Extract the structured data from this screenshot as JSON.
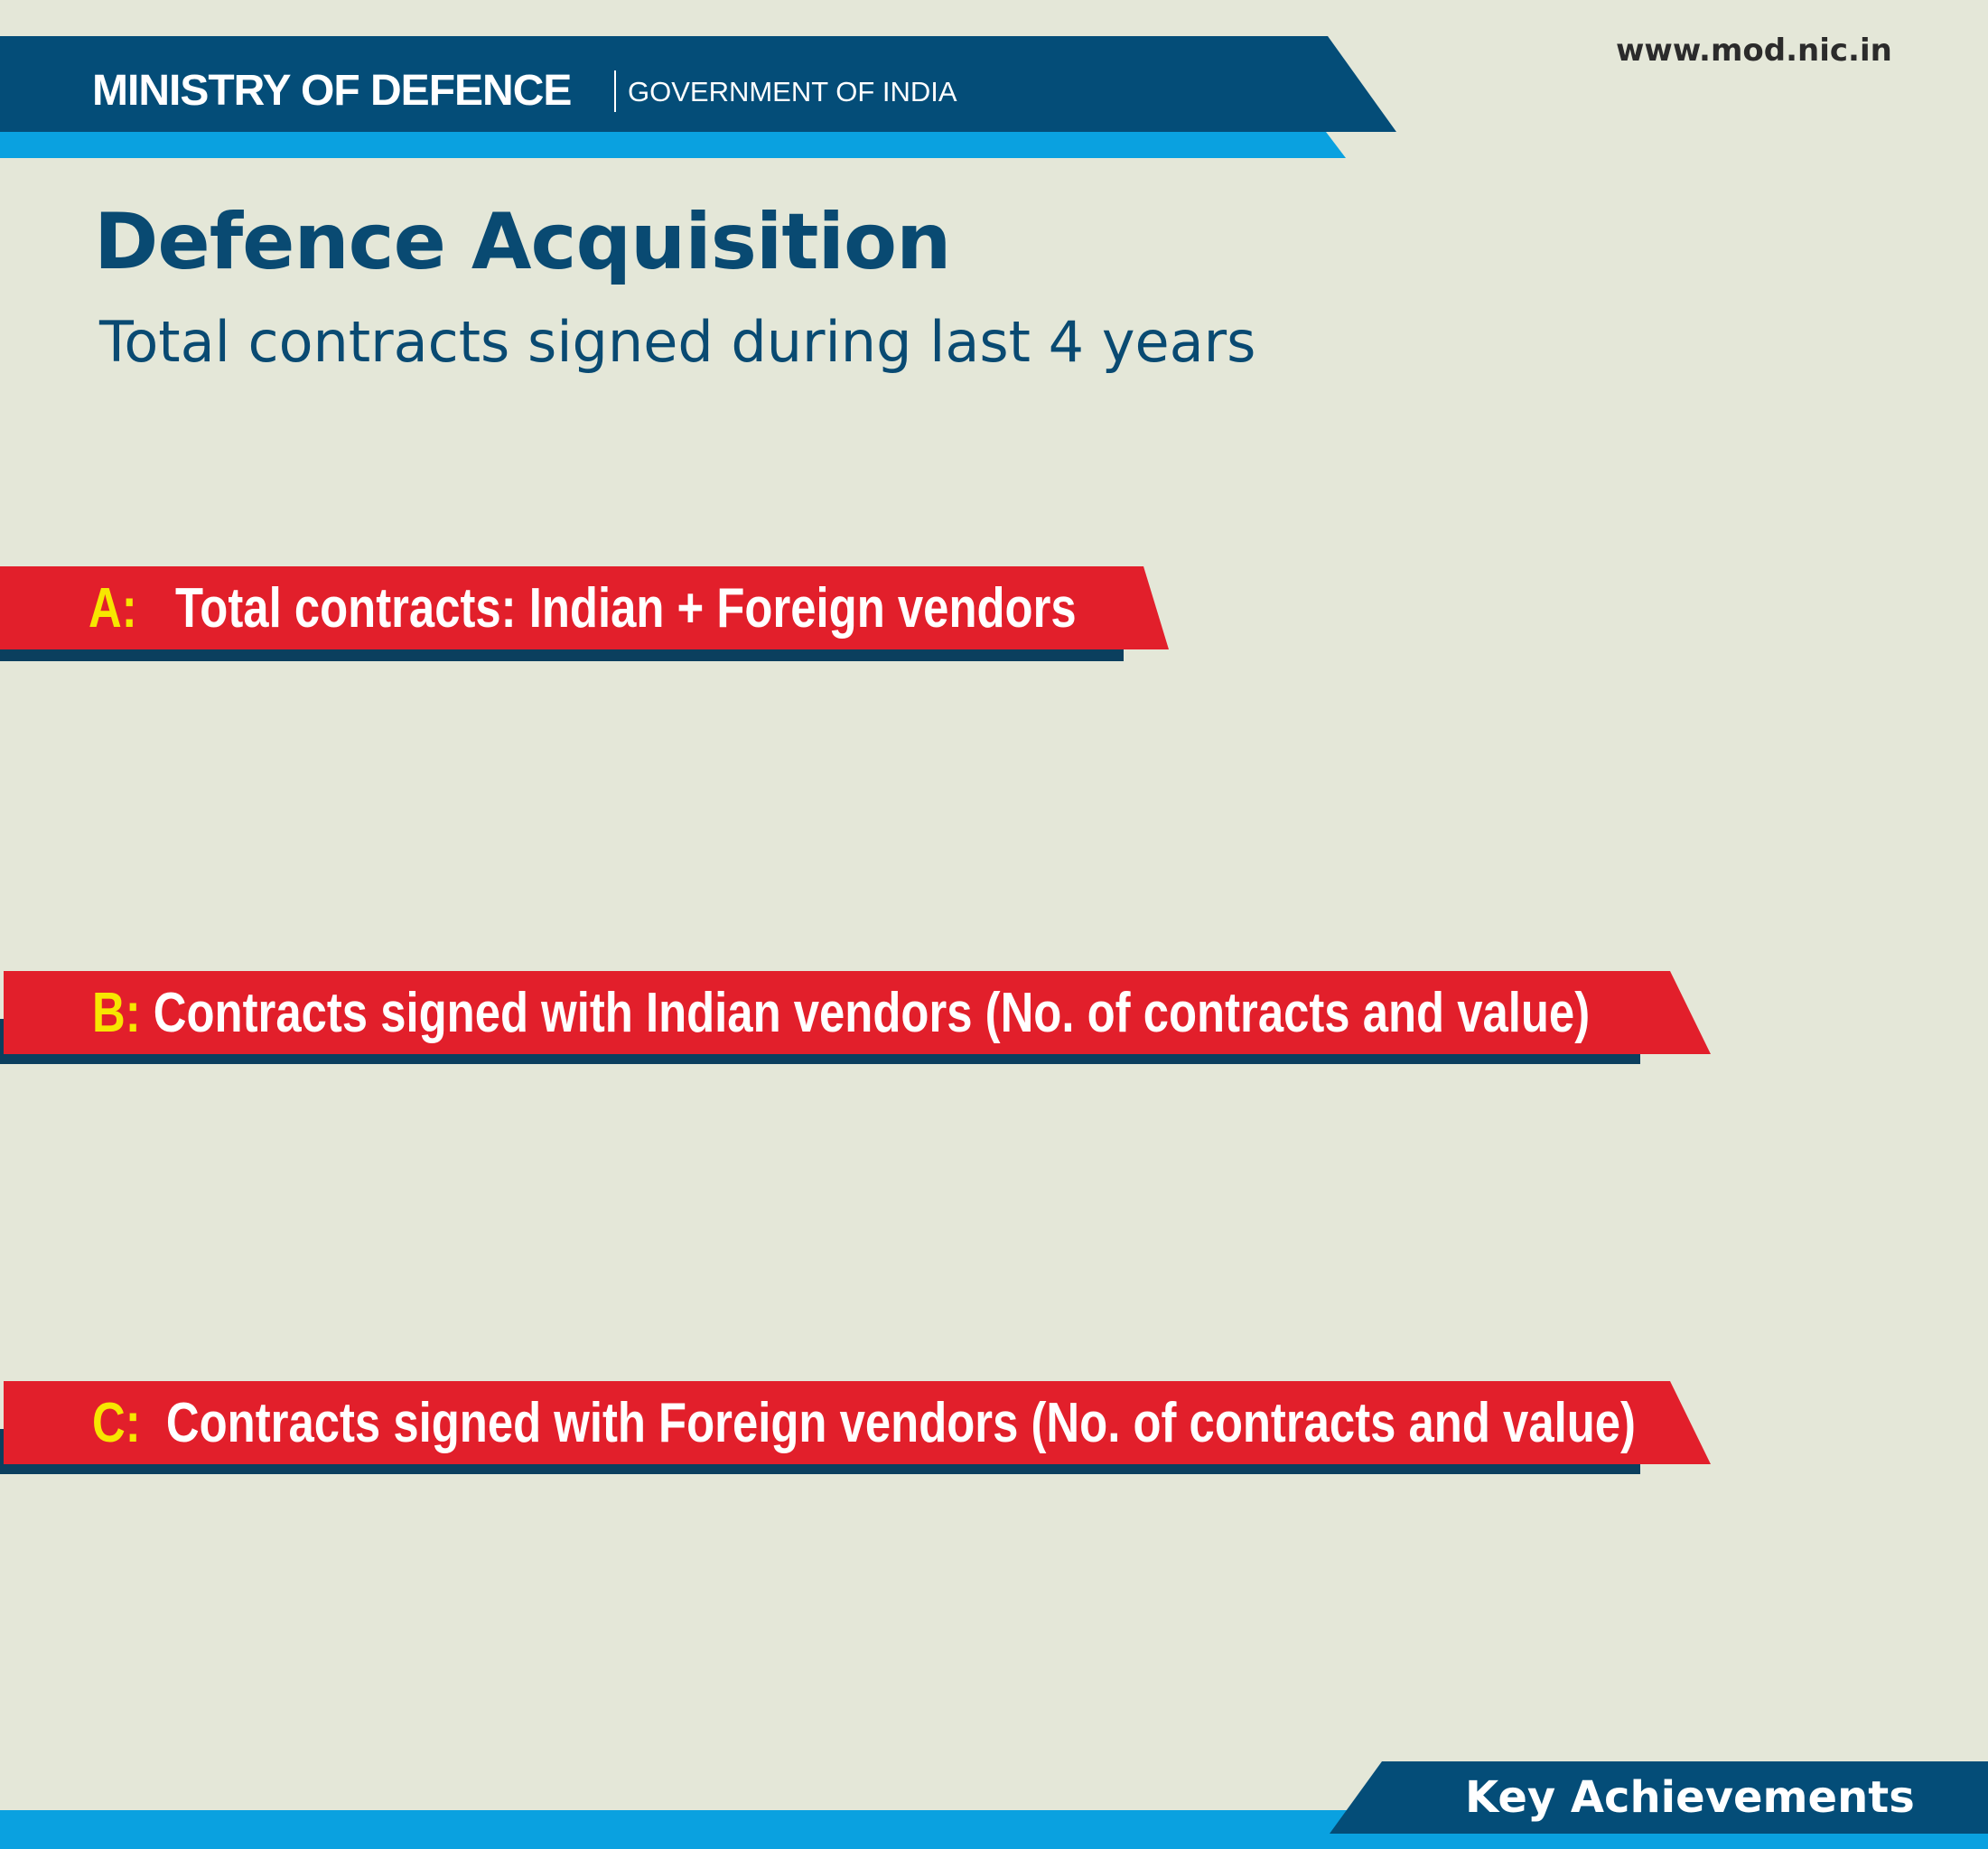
{
  "header": {
    "ministry": "MINISTRY OF DEFENCE",
    "government": "GOVERNMENT OF INDIA",
    "website": "www.mod.nic.in"
  },
  "title": {
    "main": "Defence Acquisition",
    "subtitle": "Total contracts signed during last 4 years"
  },
  "sections": [
    {
      "letter": "A:",
      "text": "Total contracts: Indian + Foreign vendors"
    },
    {
      "letter": "B:",
      "text": "Contracts signed with Indian vendors (No. of contracts and value)"
    },
    {
      "letter": "C:",
      "text": "Contracts signed with Foreign vendors (No. of contracts and value)"
    }
  ],
  "footer": {
    "label": "Key Achievements"
  },
  "colors": {
    "background": "#e4e7d8",
    "navy": "#044d78",
    "sky_blue": "#0aa1e0",
    "ribbon_red": "#e21f2b",
    "letter_yellow": "#f7e600"
  }
}
